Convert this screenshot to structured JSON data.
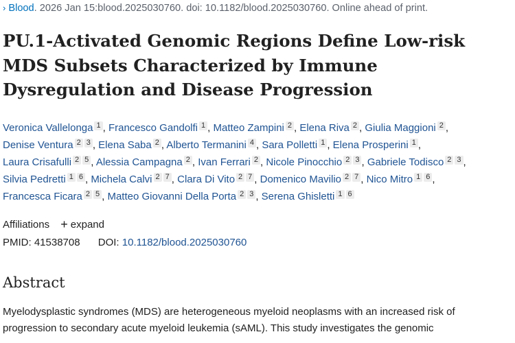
{
  "citation": {
    "chevron": "›",
    "journal": "Blood",
    "details": ". 2026 Jan 15:blood.2025030760. doi: 10.1182/blood.2025030760. Online ahead of print."
  },
  "title": "PU.1-Activated Genomic Regions Define Low-risk MDS Subsets Characterized by Immune Dysregulation and Disease Progression",
  "authors": [
    {
      "name": "Veronica Vallelonga",
      "affs": [
        "1"
      ]
    },
    {
      "name": "Francesco Gandolfi",
      "affs": [
        "1"
      ]
    },
    {
      "name": "Matteo Zampini",
      "affs": [
        "2"
      ]
    },
    {
      "name": "Elena Riva",
      "affs": [
        "2"
      ]
    },
    {
      "name": "Giulia Maggioni",
      "affs": [
        "2"
      ]
    },
    {
      "name": "Denise Ventura",
      "affs": [
        "2",
        "3"
      ]
    },
    {
      "name": "Elena Saba",
      "affs": [
        "2"
      ]
    },
    {
      "name": "Alberto Termanini",
      "affs": [
        "4"
      ]
    },
    {
      "name": "Sara Polletti",
      "affs": [
        "1"
      ]
    },
    {
      "name": "Elena Prosperini",
      "affs": [
        "1"
      ]
    },
    {
      "name": "Laura Crisafulli",
      "affs": [
        "2",
        "5"
      ]
    },
    {
      "name": "Alessia Campagna",
      "affs": [
        "2"
      ]
    },
    {
      "name": "Ivan Ferrari",
      "affs": [
        "2"
      ]
    },
    {
      "name": "Nicole Pinocchio",
      "affs": [
        "2",
        "3"
      ]
    },
    {
      "name": "Gabriele Todisco",
      "affs": [
        "2",
        "3"
      ]
    },
    {
      "name": "Silvia Pedretti",
      "affs": [
        "1",
        "6"
      ]
    },
    {
      "name": "Michela Calvi",
      "affs": [
        "2",
        "7"
      ]
    },
    {
      "name": "Clara Di Vito",
      "affs": [
        "2",
        "7"
      ]
    },
    {
      "name": "Domenico Mavilio",
      "affs": [
        "2",
        "7"
      ]
    },
    {
      "name": "Nico Mitro",
      "affs": [
        "1",
        "6"
      ]
    },
    {
      "name": "Francesca Ficara",
      "affs": [
        "2",
        "5"
      ]
    },
    {
      "name": "Matteo Giovanni Della Porta",
      "affs": [
        "2",
        "3"
      ]
    },
    {
      "name": "Serena Ghisletti",
      "affs": [
        "1",
        "6"
      ]
    }
  ],
  "affiliations": {
    "label": "Affiliations",
    "expand_icon": "+",
    "expand_label": "expand"
  },
  "ids": {
    "pmid_label": "PMID:",
    "pmid": "41538708",
    "doi_label": "DOI:",
    "doi": "10.1182/blood.2025030760"
  },
  "abstract": {
    "heading": "Abstract",
    "text": "Myelodysplastic syndromes (MDS) are heterogeneous myeloid neoplasms with an increased risk of progression to secondary acute myeloid leukemia (sAML). This study investigates the genomic"
  },
  "colors": {
    "link": "#205493",
    "accent": "#0071bc",
    "muted": "#5b616b"
  }
}
